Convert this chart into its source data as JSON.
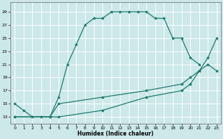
{
  "xlabel": "Humidex (Indice chaleur)",
  "background_color": "#cce8e8",
  "grid_color": "#ffffff",
  "line_color": "#1a7a6e",
  "xlim": [
    -0.5,
    23.5
  ],
  "ylim": [
    12.0,
    30.5
  ],
  "xticks": [
    0,
    1,
    2,
    3,
    4,
    5,
    6,
    7,
    8,
    9,
    10,
    11,
    12,
    13,
    14,
    15,
    16,
    17,
    18,
    19,
    20,
    21,
    22,
    23
  ],
  "yticks": [
    13,
    15,
    17,
    19,
    21,
    23,
    25,
    27,
    29
  ],
  "line1_x": [
    0,
    1,
    2,
    3,
    4,
    5,
    6,
    7,
    8,
    9,
    10,
    11,
    12,
    13,
    14,
    15,
    16,
    17,
    18,
    19,
    20,
    21
  ],
  "line1_y": [
    15,
    14,
    13,
    13,
    13,
    16,
    21,
    24,
    27,
    28,
    28,
    29,
    29,
    29,
    29,
    29,
    28,
    28,
    25,
    25,
    22,
    21
  ],
  "line2_x": [
    0,
    4,
    5,
    10,
    15,
    19,
    20,
    21,
    22,
    23
  ],
  "line2_y": [
    13,
    13,
    15,
    16,
    17,
    18,
    19,
    20,
    22,
    25
  ],
  "line3_x": [
    0,
    4,
    5,
    10,
    15,
    19,
    20,
    21,
    22,
    23
  ],
  "line3_y": [
    13,
    13,
    13,
    14,
    16,
    17,
    18,
    20,
    21,
    20
  ]
}
